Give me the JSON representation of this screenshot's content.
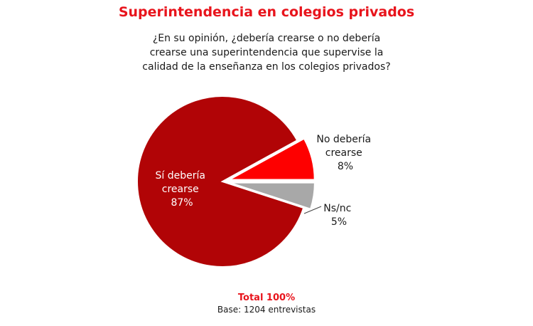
{
  "chart_data": {
    "type": "pie",
    "title": "Superintendencia en colegios privados",
    "question_lines": [
      "¿En su opinión, ¿debería crearse o no debería",
      "crearse una superintendencia que supervise la",
      "calidad de la enseñanza en los colegios privados?"
    ],
    "slices": [
      {
        "label_lines": [
          "Sí debería",
          "crearse"
        ],
        "value": 87,
        "value_label": "87%",
        "color": "#b10406",
        "exploded": false
      },
      {
        "label_lines": [
          "No debería",
          "crearse"
        ],
        "value": 8,
        "value_label": "8%",
        "color": "#fe0000",
        "exploded": true
      },
      {
        "label_lines": [
          "Ns/nc"
        ],
        "value": 5,
        "value_label": "5%",
        "color": "#a8a8a8",
        "exploded": true
      }
    ],
    "total_label": "Total 100%",
    "base_label": "Base:  1204 entrevistas"
  }
}
